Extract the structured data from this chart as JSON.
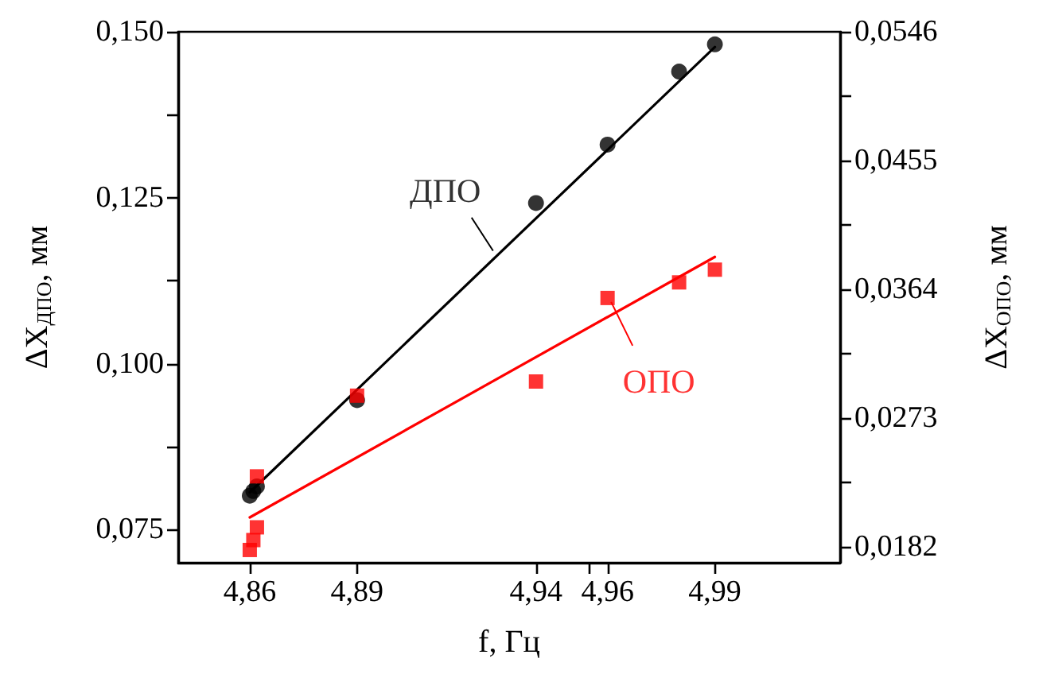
{
  "chart_data": {
    "type": "scatter",
    "xlabel": "f, Гц",
    "ylabel": "ΔX$_{ДПО}$, мм",
    "y2label": "ΔX$_{ОПО}$, мм",
    "xlim": [
      4.84,
      5.025
    ],
    "xticks": [
      {
        "value": 4.86,
        "label": "4,86"
      },
      {
        "value": 4.89,
        "label": "4,89"
      },
      {
        "value": 4.94,
        "label": "4,94"
      },
      {
        "value": 4.955,
        "label": null
      },
      {
        "value": 4.96,
        "label": "4,96"
      },
      {
        "value": 4.99,
        "label": "4,99"
      }
    ],
    "ylim": [
      0.07,
      0.15
    ],
    "yticks": [
      {
        "value": 0.075,
        "label": "0,075"
      },
      {
        "value": 0.0875,
        "label": null
      },
      {
        "value": 0.1,
        "label": "0,100"
      },
      {
        "value": 0.1125,
        "label": null
      },
      {
        "value": 0.125,
        "label": "0,125"
      },
      {
        "value": 0.1375,
        "label": null
      },
      {
        "value": 0.15,
        "label": "0,150"
      }
    ],
    "y2lim": [
      0.0171,
      0.0546
    ],
    "y2ticks": [
      {
        "value": 0.0182,
        "label": "0,0182"
      },
      {
        "value": 0.02275,
        "label": null
      },
      {
        "value": 0.0273,
        "label": "0,0273"
      },
      {
        "value": 0.03185,
        "label": null
      },
      {
        "value": 0.0364,
        "label": "0,0364"
      },
      {
        "value": 0.04095,
        "label": null
      },
      {
        "value": 0.0455,
        "label": "0,0455"
      },
      {
        "value": 0.05005,
        "label": null
      },
      {
        "value": 0.0546,
        "label": "0,0546"
      }
    ],
    "grid": false,
    "series": [
      {
        "color": "#000000",
        "marker": "circle",
        "x": [
          4.86,
          4.861,
          4.862,
          4.89,
          4.94,
          4.96,
          4.98,
          4.99
        ],
        "values": [
          0.0801,
          0.0808,
          0.0815,
          0.0945,
          0.1242,
          0.133,
          0.144,
          0.1481
        ]
      },
      {
        "color": "#ff0000",
        "marker": "square",
        "axis": "y2",
        "x": [
          4.86,
          4.861,
          4.862,
          4.862,
          4.89,
          4.94,
          4.96,
          4.98,
          4.99
        ],
        "values": [
          0.018,
          0.0187,
          0.0196,
          0.0232,
          0.0289,
          0.0299,
          0.0358,
          0.0369,
          0.0378
        ]
      },
      {
        "type": "line",
        "color": "#000000",
        "marker": "none",
        "line_style": "solid",
        "x": [
          4.86,
          4.99
        ],
        "values": [
          0.0806,
          0.1477
        ]
      },
      {
        "type": "line",
        "color": "#ff0000",
        "marker": "none",
        "line_style": "solid",
        "axis": "y2",
        "x": [
          4.86,
          4.99
        ],
        "values": [
          0.0203,
          0.0387
        ]
      }
    ],
    "annotations": [
      {
        "text": "ДПО",
        "x": 4.928,
        "y": 0.117
      },
      {
        "text": "ОПО",
        "x": 4.961,
        "y": 0.1093
      }
    ]
  }
}
